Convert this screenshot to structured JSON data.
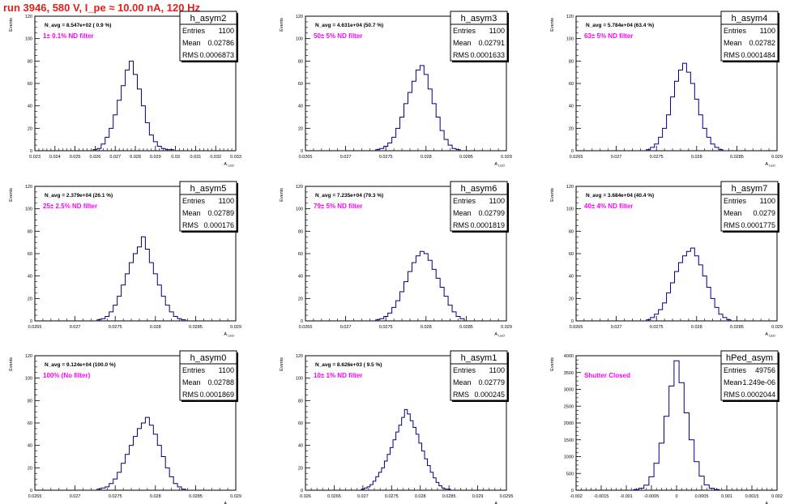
{
  "header": {
    "title": "run 3946,   580 V, I_pe ≈ 10.00 nA, 120 Hz"
  },
  "colors": {
    "title": "#e0201b",
    "histogram": "#000080",
    "annotation": "#ff00ff",
    "axis": "#000000"
  },
  "chart_data": [
    {
      "type": "bar",
      "title": "h_asym2",
      "note": "N_avg = 8.547e+02 ( 0.9 %)",
      "label": "1± 0.1% ND filter",
      "xlabel": "A_LED",
      "ylabel": "Events",
      "stats": [
        [
          "Entries",
          "1100"
        ],
        [
          "Mean",
          "0.02786"
        ],
        [
          "RMS",
          "0.0006873"
        ]
      ],
      "xlim": [
        0.023,
        0.033
      ],
      "ylim": [
        0,
        120
      ],
      "xticks": [
        "0.023",
        "0.024",
        "0.025",
        "0.026",
        "0.027",
        "0.028",
        "0.029",
        "0.03",
        "0.031",
        "0.032",
        "0.033"
      ],
      "yticks": [
        "0",
        "20",
        "40",
        "60",
        "80",
        "100",
        "120"
      ],
      "x": [
        0.026,
        0.0262,
        0.0264,
        0.0266,
        0.0268,
        0.027,
        0.0272,
        0.0274,
        0.0276,
        0.0278,
        0.028,
        0.0282,
        0.0284,
        0.0286,
        0.0288,
        0.029,
        0.0292,
        0.0294,
        0.0296,
        0.0298
      ],
      "values": [
        1,
        2,
        6,
        12,
        20,
        32,
        45,
        58,
        72,
        80,
        68,
        55,
        40,
        25,
        14,
        8,
        4,
        2,
        1,
        1
      ]
    },
    {
      "type": "bar",
      "title": "h_asym3",
      "note": "N_avg = 4.631e+04 (50.7 %)",
      "label": "50± 5% ND filter",
      "xlabel": "A_LED",
      "ylabel": "Events",
      "stats": [
        [
          "Entries",
          "1100"
        ],
        [
          "Mean",
          "0.02791"
        ],
        [
          "RMS",
          "0.0001633"
        ]
      ],
      "xlim": [
        0.0265,
        0.029
      ],
      "ylim": [
        0,
        120
      ],
      "xticks": [
        "0.0265",
        "0.027",
        "0.0275",
        "0.028",
        "0.0285",
        "0.029"
      ],
      "yticks": [
        "0",
        "20",
        "40",
        "60",
        "80",
        "100",
        "120"
      ],
      "x": [
        0.0274,
        0.02745,
        0.0275,
        0.02755,
        0.0276,
        0.02765,
        0.0277,
        0.02775,
        0.0278,
        0.02785,
        0.0279,
        0.02795,
        0.028,
        0.02805,
        0.0281,
        0.02815,
        0.0282,
        0.02825,
        0.0283,
        0.02835,
        0.0284
      ],
      "values": [
        1,
        2,
        4,
        7,
        12,
        20,
        30,
        42,
        52,
        62,
        72,
        76,
        68,
        55,
        42,
        30,
        18,
        10,
        5,
        2,
        1
      ]
    },
    {
      "type": "bar",
      "title": "h_asym4",
      "note": "N_avg = 5.784e+04 (63.4 %)",
      "label": "63± 5% ND filter",
      "xlabel": "A_LED",
      "ylabel": "Events",
      "stats": [
        [
          "Entries",
          "1100"
        ],
        [
          "Mean",
          "0.02782"
        ],
        [
          "RMS",
          "0.0001484"
        ]
      ],
      "xlim": [
        0.0265,
        0.029
      ],
      "ylim": [
        0,
        120
      ],
      "xticks": [
        "0.0265",
        "0.027",
        "0.0275",
        "0.028",
        "0.0285",
        "0.029"
      ],
      "yticks": [
        "0",
        "20",
        "40",
        "60",
        "80",
        "100",
        "120"
      ],
      "x": [
        0.0274,
        0.02745,
        0.0275,
        0.02755,
        0.0276,
        0.02765,
        0.0277,
        0.02775,
        0.0278,
        0.02785,
        0.0279,
        0.02795,
        0.028,
        0.02805,
        0.0281,
        0.02815,
        0.0282,
        0.02825,
        0.0283
      ],
      "values": [
        1,
        3,
        6,
        12,
        20,
        32,
        48,
        62,
        72,
        78,
        70,
        60,
        46,
        32,
        20,
        12,
        6,
        3,
        1
      ]
    },
    {
      "type": "bar",
      "title": "h_asym5",
      "note": "N_avg = 2.379e+04 (26.1 %)",
      "label": "25± 2.5% ND filter",
      "xlabel": "A_LED",
      "ylabel": "Events",
      "stats": [
        [
          "Entries",
          "1100"
        ],
        [
          "Mean",
          "0.02789"
        ],
        [
          "RMS",
          "0.000176"
        ]
      ],
      "xlim": [
        0.0265,
        0.029
      ],
      "ylim": [
        0,
        120
      ],
      "xticks": [
        "0.0265",
        "0.027",
        "0.0275",
        "0.028",
        "0.0285",
        "0.029"
      ],
      "yticks": [
        "0",
        "20",
        "40",
        "60",
        "80",
        "100",
        "120"
      ],
      "x": [
        0.0273,
        0.02735,
        0.0274,
        0.02745,
        0.0275,
        0.02755,
        0.0276,
        0.02765,
        0.0277,
        0.02775,
        0.0278,
        0.02785,
        0.0279,
        0.02795,
        0.028,
        0.02805,
        0.0281,
        0.02815,
        0.0282,
        0.02825,
        0.0283,
        0.02835
      ],
      "values": [
        1,
        2,
        4,
        8,
        14,
        22,
        32,
        42,
        52,
        60,
        66,
        75,
        64,
        52,
        42,
        32,
        22,
        14,
        8,
        4,
        2,
        1
      ]
    },
    {
      "type": "bar",
      "title": "h_asym6",
      "note": "N_avg = 7.235e+04 (79.3 %)",
      "label": "79± 5% ND filter",
      "xlabel": "A_LED",
      "ylabel": "Events",
      "stats": [
        [
          "Entries",
          "1100"
        ],
        [
          "Mean",
          "0.02799"
        ],
        [
          "RMS",
          "0.0001819"
        ]
      ],
      "xlim": [
        0.0265,
        0.029
      ],
      "ylim": [
        0,
        120
      ],
      "xticks": [
        "0.0265",
        "0.027",
        "0.0275",
        "0.028",
        "0.0285",
        "0.029"
      ],
      "yticks": [
        "0",
        "20",
        "40",
        "60",
        "80",
        "100",
        "120"
      ],
      "x": [
        0.0274,
        0.02745,
        0.0275,
        0.02755,
        0.0276,
        0.02765,
        0.0277,
        0.02775,
        0.0278,
        0.02785,
        0.0279,
        0.02795,
        0.028,
        0.02805,
        0.0281,
        0.02815,
        0.0282,
        0.02825,
        0.0283,
        0.02835,
        0.0284,
        0.02845
      ],
      "values": [
        1,
        2,
        4,
        7,
        12,
        18,
        26,
        35,
        44,
        52,
        58,
        62,
        60,
        54,
        46,
        38,
        30,
        22,
        14,
        8,
        4,
        2
      ]
    },
    {
      "type": "bar",
      "title": "h_asym7",
      "note": "N_avg = 3.684e+04 (40.4 %)",
      "label": "40± 4% ND filter",
      "xlabel": "A_LED",
      "ylabel": "Events",
      "stats": [
        [
          "Entries",
          "1100"
        ],
        [
          "Mean",
          "0.0279"
        ],
        [
          "RMS",
          "0.0001775"
        ]
      ],
      "xlim": [
        0.0265,
        0.029
      ],
      "ylim": [
        0,
        120
      ],
      "xticks": [
        "0.0265",
        "0.027",
        "0.0275",
        "0.028",
        "0.0285",
        "0.029"
      ],
      "yticks": [
        "0",
        "20",
        "40",
        "60",
        "80",
        "100",
        "120"
      ],
      "x": [
        0.0274,
        0.02745,
        0.0275,
        0.02755,
        0.0276,
        0.02765,
        0.0277,
        0.02775,
        0.0278,
        0.02785,
        0.0279,
        0.02795,
        0.028,
        0.02805,
        0.0281,
        0.02815,
        0.0282,
        0.02825,
        0.0283,
        0.02835,
        0.0284
      ],
      "values": [
        1,
        3,
        6,
        10,
        16,
        25,
        34,
        44,
        52,
        58,
        62,
        65,
        58,
        50,
        40,
        30,
        20,
        12,
        6,
        3,
        1
      ]
    },
    {
      "type": "bar",
      "title": "h_asym0",
      "note": "N_avg = 9.124e+04 (100.0 %)",
      "label": "100% (No filter)",
      "xlabel": "A_LED",
      "ylabel": "Events",
      "stats": [
        [
          "Entries",
          "1100"
        ],
        [
          "Mean",
          "0.02788"
        ],
        [
          "RMS",
          "0.0001869"
        ]
      ],
      "xlim": [
        0.0265,
        0.029
      ],
      "ylim": [
        0,
        120
      ],
      "xticks": [
        "0.0265",
        "0.027",
        "0.0275",
        "0.028",
        "0.0285",
        "0.029"
      ],
      "yticks": [
        "0",
        "20",
        "40",
        "60",
        "80",
        "100",
        "120"
      ],
      "x": [
        0.0273,
        0.02735,
        0.0274,
        0.02745,
        0.0275,
        0.02755,
        0.0276,
        0.02765,
        0.0277,
        0.02775,
        0.0278,
        0.02785,
        0.0279,
        0.02795,
        0.028,
        0.02805,
        0.0281,
        0.02815,
        0.0282,
        0.02825,
        0.0283,
        0.02835
      ],
      "values": [
        1,
        2,
        3,
        6,
        10,
        16,
        24,
        32,
        40,
        48,
        55,
        60,
        65,
        58,
        50,
        40,
        30,
        20,
        12,
        6,
        3,
        1
      ]
    },
    {
      "type": "bar",
      "title": "h_asym1",
      "note": "N_avg = 8.626e+03 ( 9.5 %)",
      "label": "10± 1% ND filter",
      "xlabel": "A_LED",
      "ylabel": "Events",
      "stats": [
        [
          "Entries",
          "1100"
        ],
        [
          "Mean",
          "0.02779"
        ],
        [
          "RMS",
          "0.000245"
        ]
      ],
      "xlim": [
        0.026,
        0.0295
      ],
      "ylim": [
        0,
        120
      ],
      "xticks": [
        "0.026",
        "0.0265",
        "0.027",
        "0.0275",
        "0.028",
        "0.0285",
        "0.029",
        "0.0295"
      ],
      "yticks": [
        "0",
        "20",
        "40",
        "60",
        "80",
        "100",
        "120"
      ],
      "x": [
        0.027,
        0.02705,
        0.0271,
        0.02715,
        0.0272,
        0.02725,
        0.0273,
        0.02735,
        0.0274,
        0.02745,
        0.0275,
        0.02755,
        0.0276,
        0.02765,
        0.0277,
        0.02775,
        0.0278,
        0.02785,
        0.0279,
        0.02795,
        0.028,
        0.02805,
        0.0281,
        0.02815,
        0.0282,
        0.02825,
        0.0283,
        0.02835,
        0.0284,
        0.02845,
        0.0285,
        0.02855
      ],
      "values": [
        1,
        2,
        3,
        5,
        8,
        12,
        16,
        20,
        26,
        32,
        38,
        45,
        52,
        58,
        65,
        72,
        68,
        62,
        56,
        50,
        42,
        35,
        28,
        22,
        16,
        11,
        7,
        4,
        2,
        1,
        1,
        0
      ]
    },
    {
      "type": "bar",
      "title": "hPed_asym",
      "note": "",
      "label": "Shutter Closed",
      "xlabel": "A_LED",
      "ylabel": "Events",
      "stats": [
        [
          "Entries",
          "49756"
        ],
        [
          "Mean",
          "-1.249e-06"
        ],
        [
          "RMS",
          "0.0002044"
        ]
      ],
      "xlim": [
        -0.002,
        0.002
      ],
      "ylim": [
        0,
        4000
      ],
      "xticks": [
        "-0.002",
        "-0.0015",
        "-0.001",
        "-0.0005",
        "0",
        "0.0005",
        "0.001",
        "0.0015",
        "0.002"
      ],
      "yticks": [
        "0",
        "500",
        "1000",
        "1500",
        "2000",
        "2500",
        "3000",
        "3500",
        "4000"
      ],
      "x": [
        -0.0008,
        -0.0007,
        -0.0006,
        -0.0005,
        -0.0004,
        -0.0003,
        -0.0002,
        -0.0001,
        0.0,
        0.0001,
        0.0002,
        0.0003,
        0.0004,
        0.0005,
        0.0006,
        0.0007,
        0.0008
      ],
      "values": [
        20,
        60,
        150,
        400,
        800,
        1400,
        2200,
        3100,
        3850,
        3200,
        2300,
        1500,
        850,
        420,
        160,
        60,
        20
      ]
    }
  ]
}
